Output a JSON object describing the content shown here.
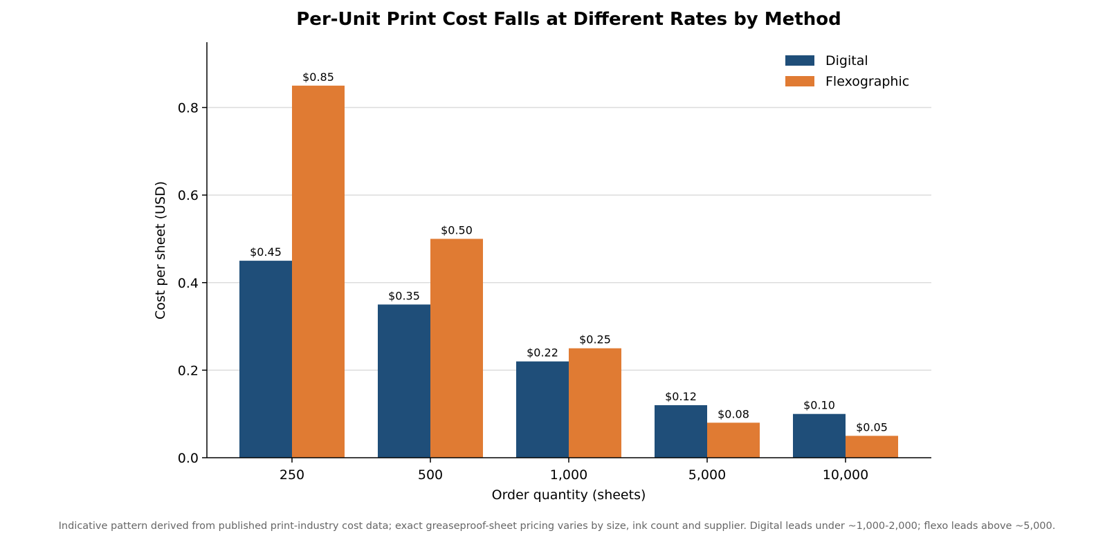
{
  "chart_data": {
    "type": "bar",
    "title": "Per-Unit Print Cost Falls at Different Rates by Method",
    "xlabel": "Order quantity (sheets)",
    "ylabel": "Cost per sheet (USD)",
    "categories": [
      "250",
      "500",
      "1,000",
      "5,000",
      "10,000"
    ],
    "series": [
      {
        "name": "Digital",
        "color": "#1f4e79",
        "values": [
          0.45,
          0.35,
          0.22,
          0.12,
          0.1
        ],
        "labels": [
          "$0.45",
          "$0.35",
          "$0.22",
          "$0.12",
          "$0.10"
        ]
      },
      {
        "name": "Flexographic",
        "color": "#e07b33",
        "values": [
          0.85,
          0.5,
          0.25,
          0.08,
          0.05
        ],
        "labels": [
          "$0.85",
          "$0.50",
          "$0.25",
          "$0.08",
          "$0.05"
        ]
      }
    ],
    "ylim": [
      0,
      0.95
    ],
    "yticks": [
      0.0,
      0.2,
      0.4,
      0.6,
      0.8
    ],
    "ytick_labels": [
      "0.0",
      "0.2",
      "0.4",
      "0.6",
      "0.8"
    ],
    "grid": "horizontal",
    "legend_position": "top-right",
    "footnote": "Indicative pattern derived from published print-industry cost data; exact greaseproof-sheet pricing varies by size, ink count and supplier. Digital leads under ~1,000-2,000; flexo leads above ~5,000."
  }
}
